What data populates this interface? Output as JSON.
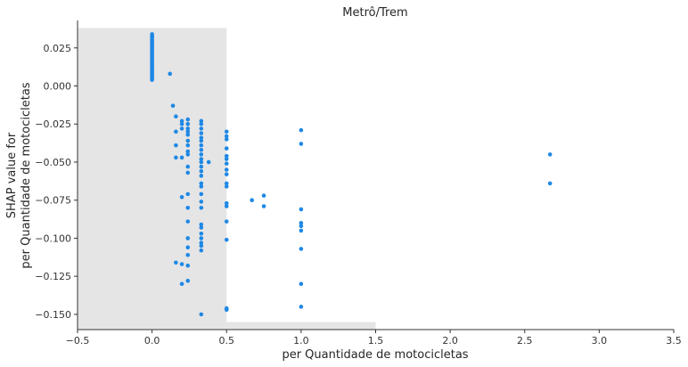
{
  "chart_data": {
    "type": "scatter",
    "title": "Metrô/Trem",
    "xlabel": "per Quantidade de motocicletas",
    "ylabel_lines": [
      "SHAP value for",
      "per Quantidade de motocicletas"
    ],
    "xlim": [
      -0.5,
      3.5
    ],
    "ylim": [
      -0.16,
      0.043
    ],
    "x_ticks": [
      -0.5,
      0.0,
      0.5,
      1.0,
      1.5,
      2.0,
      2.5,
      3.0,
      3.5
    ],
    "x_tick_labels": [
      "−0.5",
      "0.0",
      "0.5",
      "1.0",
      "1.5",
      "2.0",
      "2.5",
      "3.0",
      "3.5"
    ],
    "y_ticks": [
      0.025,
      0.0,
      -0.025,
      -0.05,
      -0.075,
      -0.1,
      -0.125,
      -0.15
    ],
    "y_tick_labels": [
      "0.025",
      "0.000",
      "−0.025",
      "−0.050",
      "−0.075",
      "−0.100",
      "−0.125",
      "−0.150"
    ],
    "histogram_background": [
      {
        "x0": -0.5,
        "x1": 0.5,
        "top": 0.038
      },
      {
        "x0": 0.5,
        "x1": 1.5,
        "top": -0.155
      }
    ],
    "point_color": "#1e88e5",
    "hist_color": "#e5e5e5",
    "series": [
      {
        "points": [
          [
            0.0,
            0.034
          ],
          [
            0.0,
            0.033
          ],
          [
            0.0,
            0.032
          ],
          [
            0.0,
            0.031
          ],
          [
            0.0,
            0.03
          ],
          [
            0.0,
            0.029
          ],
          [
            0.0,
            0.028
          ],
          [
            0.0,
            0.027
          ],
          [
            0.0,
            0.026
          ],
          [
            0.0,
            0.025
          ],
          [
            0.0,
            0.024
          ],
          [
            0.0,
            0.023
          ],
          [
            0.0,
            0.022
          ],
          [
            0.0,
            0.021
          ],
          [
            0.0,
            0.02
          ],
          [
            0.0,
            0.019
          ],
          [
            0.0,
            0.018
          ],
          [
            0.0,
            0.017
          ],
          [
            0.0,
            0.016
          ],
          [
            0.0,
            0.015
          ],
          [
            0.0,
            0.014
          ],
          [
            0.0,
            0.013
          ],
          [
            0.0,
            0.012
          ],
          [
            0.0,
            0.011
          ],
          [
            0.0,
            0.01
          ],
          [
            0.0,
            0.009
          ],
          [
            0.0,
            0.008
          ],
          [
            0.0,
            0.007
          ],
          [
            0.0,
            0.006
          ],
          [
            0.0,
            0.005
          ],
          [
            0.0,
            0.004
          ],
          [
            0.12,
            0.008
          ],
          [
            0.14,
            -0.013
          ],
          [
            0.16,
            -0.02
          ],
          [
            0.16,
            -0.03
          ],
          [
            0.16,
            -0.039
          ],
          [
            0.16,
            -0.047
          ],
          [
            0.16,
            -0.116
          ],
          [
            0.2,
            -0.023
          ],
          [
            0.2,
            -0.025
          ],
          [
            0.2,
            -0.028
          ],
          [
            0.2,
            -0.047
          ],
          [
            0.2,
            -0.073
          ],
          [
            0.2,
            -0.117
          ],
          [
            0.2,
            -0.13
          ],
          [
            0.24,
            -0.022
          ],
          [
            0.24,
            -0.025
          ],
          [
            0.24,
            -0.028
          ],
          [
            0.24,
            -0.03
          ],
          [
            0.24,
            -0.032
          ],
          [
            0.24,
            -0.036
          ],
          [
            0.24,
            -0.039
          ],
          [
            0.24,
            -0.043
          ],
          [
            0.24,
            -0.045
          ],
          [
            0.24,
            -0.053
          ],
          [
            0.24,
            -0.057
          ],
          [
            0.24,
            -0.071
          ],
          [
            0.24,
            -0.08
          ],
          [
            0.24,
            -0.089
          ],
          [
            0.24,
            -0.1
          ],
          [
            0.24,
            -0.106
          ],
          [
            0.24,
            -0.111
          ],
          [
            0.24,
            -0.118
          ],
          [
            0.24,
            -0.128
          ],
          [
            0.33,
            -0.023
          ],
          [
            0.33,
            -0.025
          ],
          [
            0.33,
            -0.028
          ],
          [
            0.33,
            -0.031
          ],
          [
            0.33,
            -0.034
          ],
          [
            0.33,
            -0.036
          ],
          [
            0.33,
            -0.039
          ],
          [
            0.33,
            -0.042
          ],
          [
            0.33,
            -0.045
          ],
          [
            0.33,
            -0.048
          ],
          [
            0.33,
            -0.05
          ],
          [
            0.33,
            -0.053
          ],
          [
            0.33,
            -0.056
          ],
          [
            0.33,
            -0.059
          ],
          [
            0.33,
            -0.064
          ],
          [
            0.33,
            -0.066
          ],
          [
            0.33,
            -0.071
          ],
          [
            0.33,
            -0.076
          ],
          [
            0.33,
            -0.08
          ],
          [
            0.33,
            -0.091
          ],
          [
            0.33,
            -0.093
          ],
          [
            0.33,
            -0.097
          ],
          [
            0.33,
            -0.1
          ],
          [
            0.33,
            -0.103
          ],
          [
            0.33,
            -0.105
          ],
          [
            0.33,
            -0.108
          ],
          [
            0.33,
            -0.15
          ],
          [
            0.38,
            -0.05
          ],
          [
            0.5,
            -0.03
          ],
          [
            0.5,
            -0.033
          ],
          [
            0.5,
            -0.035
          ],
          [
            0.5,
            -0.041
          ],
          [
            0.5,
            -0.046
          ],
          [
            0.5,
            -0.048
          ],
          [
            0.5,
            -0.051
          ],
          [
            0.5,
            -0.055
          ],
          [
            0.5,
            -0.058
          ],
          [
            0.5,
            -0.064
          ],
          [
            0.5,
            -0.066
          ],
          [
            0.5,
            -0.077
          ],
          [
            0.5,
            -0.079
          ],
          [
            0.5,
            -0.089
          ],
          [
            0.5,
            -0.101
          ],
          [
            0.5,
            -0.146
          ],
          [
            0.5,
            -0.147
          ],
          [
            0.67,
            -0.075
          ],
          [
            0.75,
            -0.072
          ],
          [
            0.75,
            -0.079
          ],
          [
            1.0,
            -0.029
          ],
          [
            1.0,
            -0.038
          ],
          [
            1.0,
            -0.081
          ],
          [
            1.0,
            -0.09
          ],
          [
            1.0,
            -0.092
          ],
          [
            1.0,
            -0.095
          ],
          [
            1.0,
            -0.107
          ],
          [
            1.0,
            -0.13
          ],
          [
            1.0,
            -0.145
          ],
          [
            2.67,
            -0.045
          ],
          [
            2.67,
            -0.064
          ]
        ]
      }
    ]
  }
}
